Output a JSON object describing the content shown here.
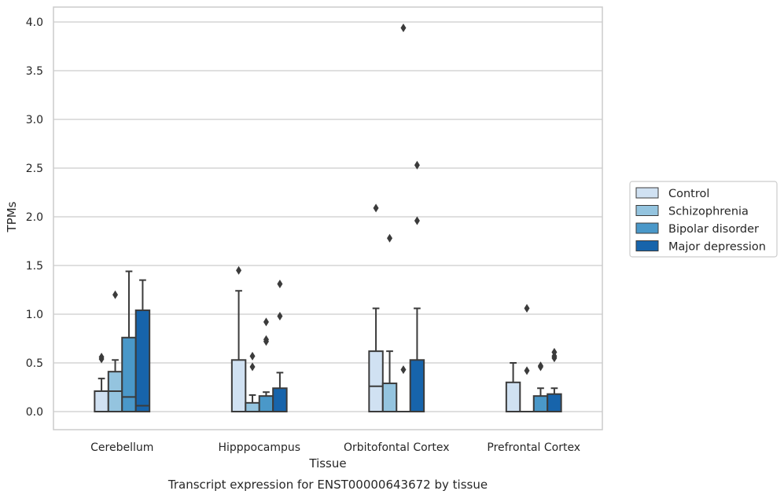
{
  "chart_data": {
    "type": "box",
    "caption": "Transcript expression for ENST00000643672 by tissue",
    "xlabel": "Tissue",
    "ylabel": "TPMs",
    "ylim": [
      -0.19,
      4.15
    ],
    "yticks": [
      "0.0",
      "0.5",
      "1.0",
      "1.5",
      "2.0",
      "2.5",
      "3.0",
      "3.5",
      "4.0"
    ],
    "grid": true,
    "legend_position": "right",
    "categories": [
      "Cerebellum",
      "Hipppocampus",
      "Orbitofontal Cortex",
      "Prefrontal Cortex"
    ],
    "series": [
      {
        "name": "Control",
        "color": "#d0e1f2",
        "boxes": [
          {
            "whisker_low": 0.0,
            "q1": 0.0,
            "median": 0.21,
            "q3": 0.21,
            "whisker_high": 0.34,
            "outliers": [
              0.54,
              0.56
            ]
          },
          {
            "whisker_low": 0.0,
            "q1": 0.0,
            "median": 0.0,
            "q3": 0.53,
            "whisker_high": 1.24,
            "outliers": [
              1.45
            ]
          },
          {
            "whisker_low": 0.0,
            "q1": 0.0,
            "median": 0.26,
            "q3": 0.62,
            "whisker_high": 1.06,
            "outliers": [
              2.09
            ]
          },
          {
            "whisker_low": 0.0,
            "q1": 0.0,
            "median": 0.0,
            "q3": 0.3,
            "whisker_high": 0.5,
            "outliers": []
          }
        ]
      },
      {
        "name": "Schizophrenia",
        "color": "#94c4df",
        "boxes": [
          {
            "whisker_low": 0.0,
            "q1": 0.0,
            "median": 0.21,
            "q3": 0.41,
            "whisker_high": 0.53,
            "outliers": [
              1.2
            ]
          },
          {
            "whisker_low": 0.0,
            "q1": 0.0,
            "median": 0.0,
            "q3": 0.09,
            "whisker_high": 0.17,
            "outliers": [
              0.46,
              0.57
            ]
          },
          {
            "whisker_low": 0.0,
            "q1": 0.0,
            "median": 0.0,
            "q3": 0.29,
            "whisker_high": 0.62,
            "outliers": [
              1.78
            ]
          },
          {
            "whisker_low": 0.0,
            "q1": 0.0,
            "median": 0.0,
            "q3": 0.0,
            "whisker_high": 0.0,
            "outliers": [
              0.42,
              1.06
            ]
          }
        ]
      },
      {
        "name": "Bipolar disorder",
        "color": "#4a98c9",
        "boxes": [
          {
            "whisker_low": 0.0,
            "q1": 0.0,
            "median": 0.15,
            "q3": 0.76,
            "whisker_high": 1.44,
            "outliers": []
          },
          {
            "whisker_low": 0.0,
            "q1": 0.0,
            "median": 0.0,
            "q3": 0.16,
            "whisker_high": 0.2,
            "outliers": [
              0.72,
              0.74,
              0.92
            ]
          },
          {
            "whisker_low": 0.0,
            "q1": 0.0,
            "median": 0.0,
            "q3": 0.0,
            "whisker_high": 0.0,
            "outliers": [
              0.43,
              3.94
            ]
          },
          {
            "whisker_low": 0.0,
            "q1": 0.0,
            "median": 0.0,
            "q3": 0.16,
            "whisker_high": 0.24,
            "outliers": [
              0.46,
              0.47
            ]
          }
        ]
      },
      {
        "name": "Major depression",
        "color": "#1764ab",
        "boxes": [
          {
            "whisker_low": 0.0,
            "q1": 0.0,
            "median": 0.06,
            "q3": 1.04,
            "whisker_high": 1.35,
            "outliers": []
          },
          {
            "whisker_low": 0.0,
            "q1": 0.0,
            "median": 0.0,
            "q3": 0.24,
            "whisker_high": 0.4,
            "outliers": [
              0.98,
              1.31
            ]
          },
          {
            "whisker_low": 0.0,
            "q1": 0.0,
            "median": 0.0,
            "q3": 0.53,
            "whisker_high": 1.06,
            "outliers": [
              1.96,
              2.53
            ]
          },
          {
            "whisker_low": 0.0,
            "q1": 0.0,
            "median": 0.0,
            "q3": 0.18,
            "whisker_high": 0.24,
            "outliers": [
              0.55,
              0.57,
              0.61
            ]
          }
        ]
      }
    ]
  }
}
